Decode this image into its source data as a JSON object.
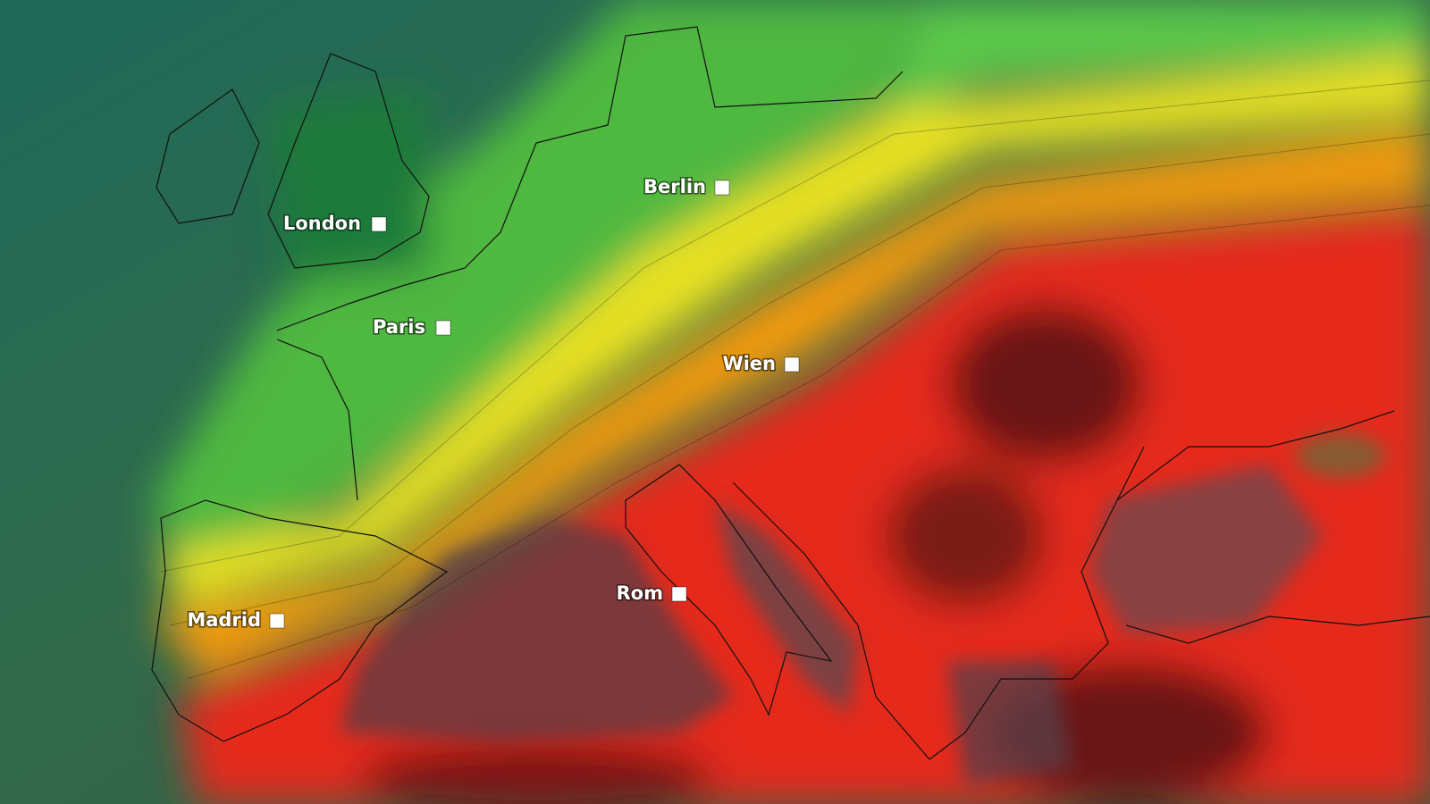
{
  "cities": [
    {
      "label": "London"
    },
    {
      "label": "Berlin"
    },
    {
      "label": "Paris"
    },
    {
      "label": "Wien"
    },
    {
      "label": "Madrid"
    },
    {
      "label": "Rom"
    }
  ]
}
